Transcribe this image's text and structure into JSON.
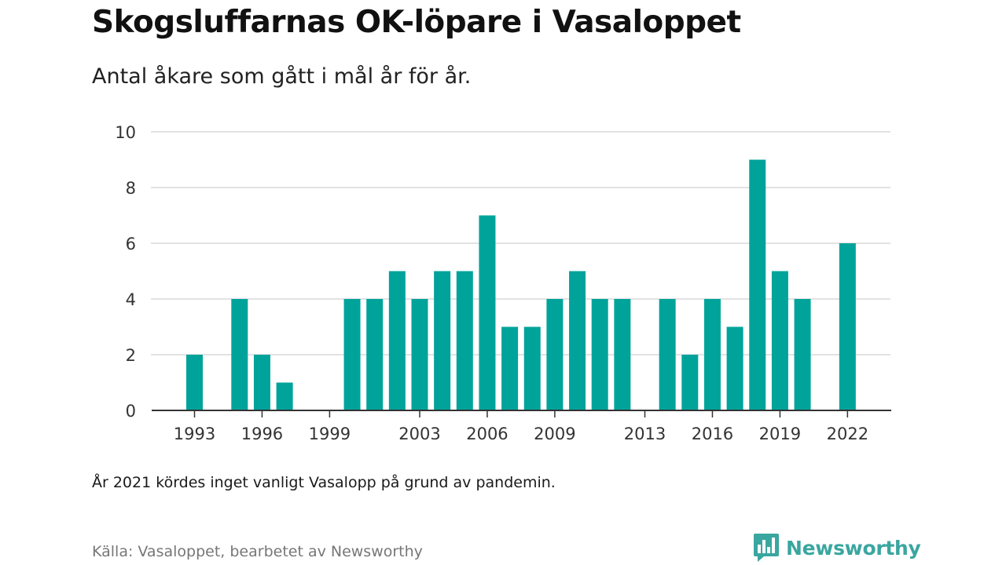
{
  "header": {
    "title": "Skogsluffarnas OK-löpare i Vasaloppet",
    "subtitle": "Antal åkare som gått i mål år för år."
  },
  "footer": {
    "note": "År 2021 kördes inget vanligt Vasalopp på grund av pandemin.",
    "source": "Källa: Vasaloppet, bearbetet av Newsworthy",
    "brand": "Newsworthy"
  },
  "colors": {
    "bar": "#00a39a",
    "brand": "#3aa6a0",
    "grid": "#d9d9d9",
    "axis": "#333333"
  },
  "logo_icon": "bar-chart-speech-bubble-icon",
  "chart_data": {
    "type": "bar",
    "x": [
      1993,
      1994,
      1995,
      1996,
      1997,
      1998,
      1999,
      2000,
      2001,
      2002,
      2003,
      2004,
      2005,
      2006,
      2007,
      2008,
      2009,
      2010,
      2011,
      2012,
      2013,
      2014,
      2015,
      2016,
      2017,
      2018,
      2019,
      2020,
      2021,
      2022
    ],
    "values": [
      2,
      0,
      4,
      2,
      1,
      0,
      0,
      4,
      4,
      5,
      4,
      5,
      5,
      7,
      3,
      3,
      4,
      5,
      4,
      4,
      0,
      4,
      2,
      4,
      3,
      9,
      5,
      4,
      0,
      6
    ],
    "x_ticks": [
      1993,
      1996,
      1999,
      2003,
      2006,
      2009,
      2013,
      2016,
      2019,
      2022
    ],
    "y_ticks": [
      0,
      2,
      4,
      6,
      8,
      10
    ],
    "ylim": [
      0,
      10
    ],
    "grid": true,
    "title": "Skogsluffarnas OK-löpare i Vasaloppet",
    "xlabel": "",
    "ylabel": ""
  }
}
